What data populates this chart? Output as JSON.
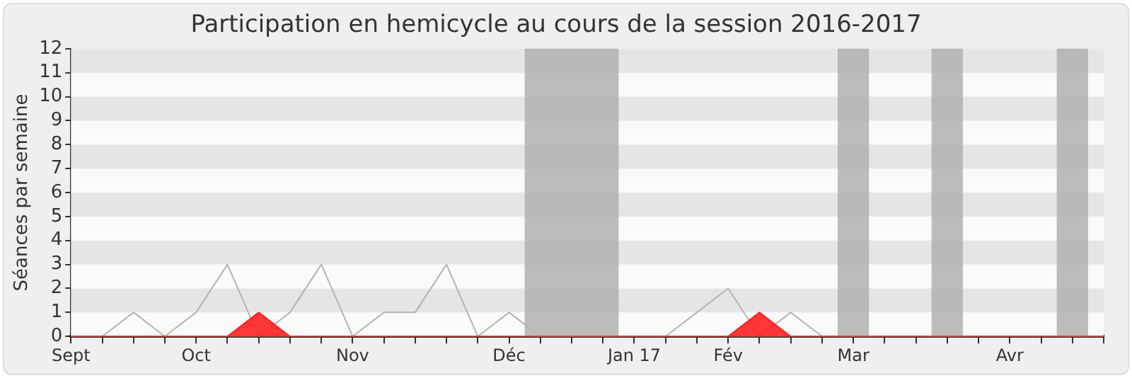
{
  "chart_data": {
    "type": "line",
    "title": "Participation en hemicycle au cours de la session 2016-2017",
    "ylabel": "Séances par semaine",
    "x": [
      "2016-09-07",
      "2016-09-14",
      "2016-09-21",
      "2016-09-28",
      "2016-10-05",
      "2016-10-12",
      "2016-10-19",
      "2016-10-26",
      "2016-11-02",
      "2016-11-09",
      "2016-11-16",
      "2016-11-23",
      "2016-11-30",
      "2016-12-07",
      "2016-12-14",
      "2016-12-21",
      "2016-12-28",
      "2017-01-04",
      "2017-01-11",
      "2017-01-18",
      "2017-01-25",
      "2017-02-01",
      "2017-02-08",
      "2017-02-15",
      "2017-02-22",
      "2017-03-01",
      "2017-03-08",
      "2017-03-15",
      "2017-03-22",
      "2017-03-29",
      "2017-04-05",
      "2017-04-12",
      "2017-04-19",
      "2017-04-26"
    ],
    "series": [
      {
        "color": "#b4b4b4",
        "values": [
          0,
          0,
          1,
          0,
          1,
          3,
          0,
          1,
          3,
          0,
          1,
          1,
          3,
          0,
          1,
          0,
          0,
          0,
          0,
          0,
          1,
          2,
          0,
          1,
          0,
          0,
          0,
          0,
          0,
          0,
          0,
          0,
          0,
          0
        ]
      },
      {
        "type": "area",
        "color": "#ff2020",
        "values": [
          0,
          0,
          0,
          0,
          0,
          0,
          1,
          0,
          0,
          0,
          0,
          0,
          0,
          0,
          0,
          0,
          0,
          0,
          0,
          0,
          0,
          0,
          1,
          0,
          0,
          0,
          0,
          0,
          0,
          0,
          0,
          0,
          0,
          0
        ]
      }
    ],
    "xlim": [
      "2016-09-07",
      "2017-04-26"
    ],
    "xticks": [
      {
        "value": "2016-09-07",
        "label": "Sept"
      },
      {
        "value": "2016-09-14",
        "label": null
      },
      {
        "value": "2016-09-21",
        "label": null
      },
      {
        "value": "2016-09-28",
        "label": null
      },
      {
        "value": "2016-10-05",
        "label": "Oct"
      },
      {
        "value": "2016-10-12",
        "label": null
      },
      {
        "value": "2016-10-19",
        "label": null
      },
      {
        "value": "2016-10-26",
        "label": null
      },
      {
        "value": "2016-11-02",
        "label": null
      },
      {
        "value": "2016-11-09",
        "label": "Nov"
      },
      {
        "value": "2016-11-16",
        "label": null
      },
      {
        "value": "2016-11-23",
        "label": null
      },
      {
        "value": "2016-11-30",
        "label": null
      },
      {
        "value": "2016-12-07",
        "label": null
      },
      {
        "value": "2016-12-14",
        "label": "Déc"
      },
      {
        "value": "2016-12-21",
        "label": null
      },
      {
        "value": "2016-12-28",
        "label": null
      },
      {
        "value": "2017-01-04",
        "label": null
      },
      {
        "value": "2017-01-11",
        "label": "Jan 17"
      },
      {
        "value": "2017-01-18",
        "label": null
      },
      {
        "value": "2017-01-25",
        "label": null
      },
      {
        "value": "2017-02-01",
        "label": "Fév"
      },
      {
        "value": "2017-02-08",
        "label": null
      },
      {
        "value": "2017-02-15",
        "label": null
      },
      {
        "value": "2017-02-22",
        "label": null
      },
      {
        "value": "2017-03-01",
        "label": "Mar"
      },
      {
        "value": "2017-03-08",
        "label": null
      },
      {
        "value": "2017-03-15",
        "label": null
      },
      {
        "value": "2017-03-22",
        "label": null
      },
      {
        "value": "2017-03-29",
        "label": null
      },
      {
        "value": "2017-04-05",
        "label": "Avr"
      },
      {
        "value": "2017-04-12",
        "label": null
      },
      {
        "value": "2017-04-19",
        "label": null
      },
      {
        "value": "2017-04-26",
        "label": null
      }
    ],
    "ylim": [
      0,
      12
    ],
    "yticks": [
      0,
      1,
      2,
      3,
      4,
      5,
      6,
      7,
      8,
      9,
      10,
      11,
      12
    ],
    "bands": [
      {
        "axis": "x",
        "from": "2016-12-17T12:00",
        "to": "2017-01-07T12:00",
        "color": "#b0b0b0"
      },
      {
        "axis": "x",
        "from": "2017-02-25T12:00",
        "to": "2017-03-04T12:00",
        "color": "#b0b0b0"
      },
      {
        "axis": "x",
        "from": "2017-03-18T12:00",
        "to": "2017-03-25T12:00",
        "color": "#b0b0b0"
      },
      {
        "axis": "x",
        "from": "2017-04-15T12:00",
        "to": "2017-04-22T12:00",
        "color": "#b0b0b0"
      }
    ],
    "legend": false,
    "marker": "none",
    "line_style": "solid"
  }
}
